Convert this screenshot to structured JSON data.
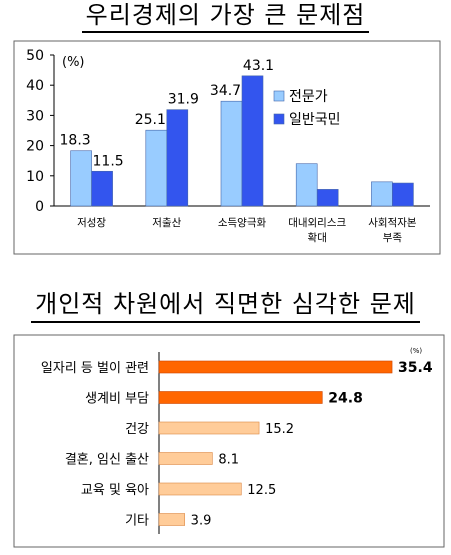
{
  "chart_data": [
    {
      "type": "bar",
      "title": "우리경제의 가장 큰 문제점",
      "unit": "(%)",
      "categories": [
        "저성장",
        "저출산",
        "소득양극화",
        [
          "대내외리스크",
          "확대"
        ],
        [
          "사회적자본",
          "부족"
        ]
      ],
      "series": [
        {
          "name": "전문가",
          "color": "#99CCFF",
          "values": [
            18.3,
            25.1,
            34.7,
            14.0,
            8.0
          ],
          "labels": [
            "18.3",
            "25.1",
            "34.7",
            null,
            null
          ]
        },
        {
          "name": "일반국민",
          "color": "#3355EE",
          "values": [
            11.5,
            31.9,
            43.1,
            5.5,
            7.6
          ],
          "labels": [
            "11.5",
            "31.9",
            "43.1",
            null,
            null
          ]
        }
      ],
      "ylim": [
        0,
        50
      ],
      "yticks": [
        "0",
        "10",
        "20",
        "30",
        "40",
        "50"
      ],
      "legend": "right"
    },
    {
      "type": "bar",
      "orientation": "horizontal",
      "title": "개인적 차원에서 직면한 심각한 문제",
      "unit": "(%)",
      "categories": [
        "일자리 등 벌이 관련",
        "생계비 부담",
        "건강",
        "결혼, 임신 출산",
        "교육 및 육아",
        "기타"
      ],
      "values": [
        35.4,
        24.8,
        15.2,
        8.1,
        12.5,
        3.9
      ],
      "labels": [
        "35.4",
        "24.8",
        "15.2",
        "8.1",
        "12.5",
        "3.9"
      ],
      "highlight": [
        true,
        true,
        false,
        false,
        false,
        false
      ],
      "colors": {
        "highlight": "#FF6600",
        "normal": "#FFCC99"
      },
      "xlim": [
        0,
        36
      ]
    }
  ]
}
